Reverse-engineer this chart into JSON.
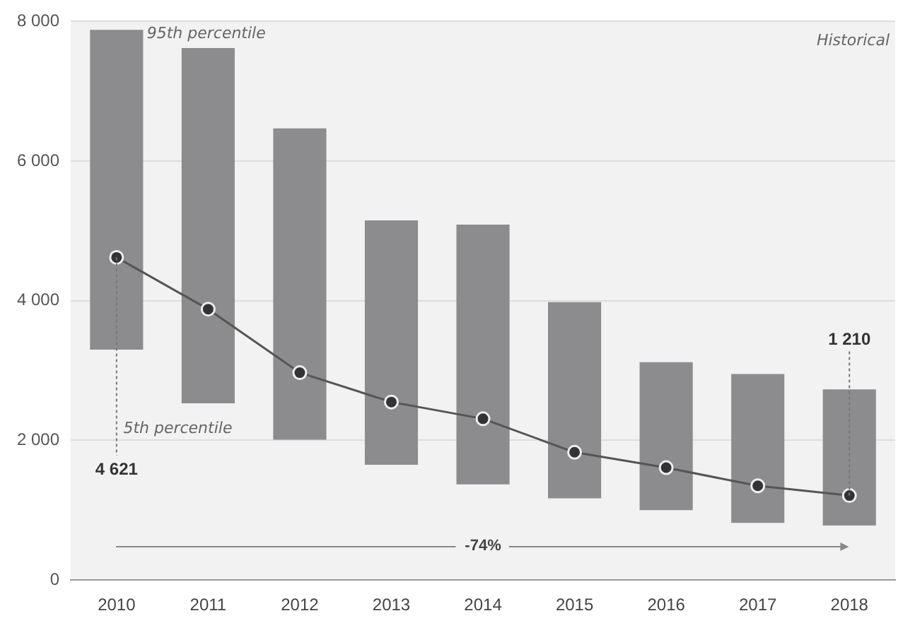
{
  "chart_data": {
    "type": "bar",
    "categories": [
      "2010",
      "2011",
      "2012",
      "2013",
      "2014",
      "2015",
      "2016",
      "2017",
      "2018"
    ],
    "series": [
      {
        "type": "bar",
        "color": "#8c8c8e",
        "base": [
          3300,
          2530,
          2010,
          1650,
          1370,
          1170,
          1000,
          820,
          780
        ],
        "values": [
          4580,
          5090,
          4460,
          3500,
          3720,
          2810,
          2120,
          2130,
          1950
        ]
      },
      {
        "type": "line",
        "color": "#555555",
        "values": [
          4621,
          3880,
          2970,
          2550,
          2310,
          1830,
          1610,
          1350,
          1210
        ],
        "value_labels": [
          "4 621",
          null,
          null,
          null,
          null,
          null,
          null,
          null,
          "1 210"
        ]
      }
    ],
    "ylim": [
      0,
      8000
    ],
    "yticks": [
      0,
      {
        "value": 2000,
        "label": "2 000"
      },
      {
        "value": 4000,
        "label": "4 000"
      },
      {
        "value": 6000,
        "label": "6 000"
      },
      {
        "value": 8000,
        "label": "8 000"
      }
    ],
    "grid": "y",
    "legend": false,
    "marker": "circle",
    "annotations": [
      {
        "text": "95th percentile",
        "x": "2010",
        "y": 7880
      },
      {
        "text": "5th percentile",
        "x": "2011",
        "y": 2530
      },
      "-74%",
      "Historical"
    ]
  }
}
